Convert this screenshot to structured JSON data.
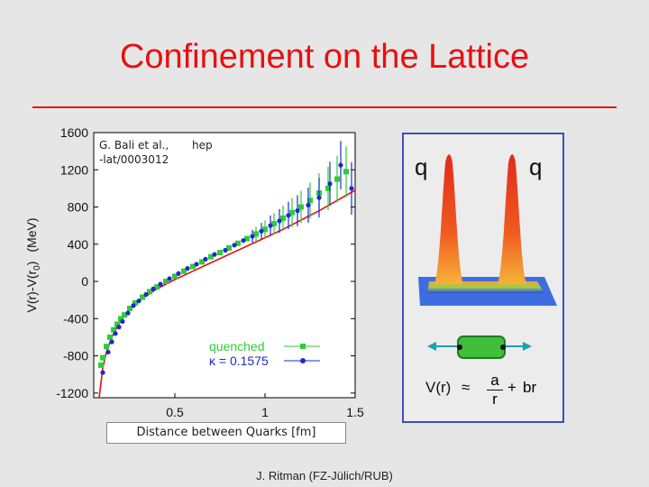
{
  "slide": {
    "title": "Confinement on the Lattice",
    "footer": "J. Ritman  (FZ-Jülich/RUB)",
    "credit_line1": "G. Bali et al.,",
    "credit_hep": "hep",
    "credit_line2": "-lat/0003012",
    "quark_left": "q",
    "quark_right": "q",
    "formula_lhs": "V(r)",
    "formula_eq": "≈",
    "formula_num": "a",
    "formula_den": "r",
    "formula_plus": "+",
    "formula_rhs": "br"
  },
  "chart_data": {
    "type": "scatter",
    "title": "",
    "xlabel": "Distance between Quarks [fm]",
    "ylabel_main": "V(r)-V(r",
    "ylabel_sub": "0",
    "ylabel_close": ")",
    "ylabel_unit": "(MeV)",
    "xlim": [
      0.05,
      1.5
    ],
    "ylim": [
      -1250,
      1600
    ],
    "xticks": [
      "0.5",
      "1",
      "1.5"
    ],
    "xtick_values": [
      0.5,
      1,
      1.5
    ],
    "yticks": [
      "1600",
      "1200",
      "800",
      "400",
      "0",
      "-400",
      "-800",
      "-1200"
    ],
    "ytick_values": [
      1600,
      1200,
      800,
      400,
      0,
      -400,
      -800,
      -1200
    ],
    "legend_position": "bottom-right",
    "series": [
      {
        "name": "quenched",
        "color": "#2ecc3a",
        "marker": "square",
        "x": [
          0.09,
          0.1,
          0.12,
          0.14,
          0.16,
          0.18,
          0.2,
          0.22,
          0.25,
          0.28,
          0.32,
          0.36,
          0.4,
          0.45,
          0.5,
          0.55,
          0.6,
          0.65,
          0.7,
          0.75,
          0.8,
          0.85,
          0.9,
          0.95,
          1.0,
          1.05,
          1.1,
          1.15,
          1.2,
          1.25,
          1.3,
          1.35,
          1.4,
          1.45
        ],
        "y": [
          -900,
          -820,
          -700,
          -600,
          -520,
          -460,
          -400,
          -360,
          -290,
          -230,
          -170,
          -110,
          -60,
          0,
          55,
          110,
          160,
          210,
          265,
          310,
          360,
          410,
          460,
          510,
          560,
          620,
          680,
          740,
          800,
          870,
          950,
          1000,
          1100,
          1180
        ]
      },
      {
        "name": "κ = 0.1575",
        "color": "#1a2bd0",
        "marker": "circle",
        "x": [
          0.1,
          0.13,
          0.15,
          0.17,
          0.19,
          0.21,
          0.24,
          0.27,
          0.3,
          0.34,
          0.38,
          0.42,
          0.47,
          0.52,
          0.57,
          0.62,
          0.67,
          0.72,
          0.78,
          0.83,
          0.88,
          0.93,
          0.98,
          1.03,
          1.08,
          1.13,
          1.18,
          1.24,
          1.3,
          1.36,
          1.42,
          1.48
        ],
        "y": [
          -980,
          -760,
          -650,
          -560,
          -490,
          -430,
          -340,
          -260,
          -210,
          -140,
          -80,
          -30,
          30,
          85,
          140,
          185,
          240,
          290,
          335,
          390,
          440,
          485,
          540,
          600,
          650,
          710,
          760,
          820,
          900,
          1050,
          1250,
          1000
        ]
      }
    ],
    "fit_curve": {
      "type": "line",
      "color": "#e81010",
      "x": [
        0.08,
        0.1,
        0.12,
        0.15,
        0.2,
        0.25,
        0.3,
        0.4,
        0.5,
        0.6,
        0.7,
        0.8,
        0.9,
        1.0,
        1.1,
        1.2,
        1.3,
        1.4,
        1.5
      ],
      "y": [
        -1250,
        -930,
        -760,
        -600,
        -420,
        -300,
        -210,
        -80,
        20,
        110,
        200,
        290,
        380,
        470,
        560,
        660,
        760,
        870,
        980
      ]
    }
  }
}
